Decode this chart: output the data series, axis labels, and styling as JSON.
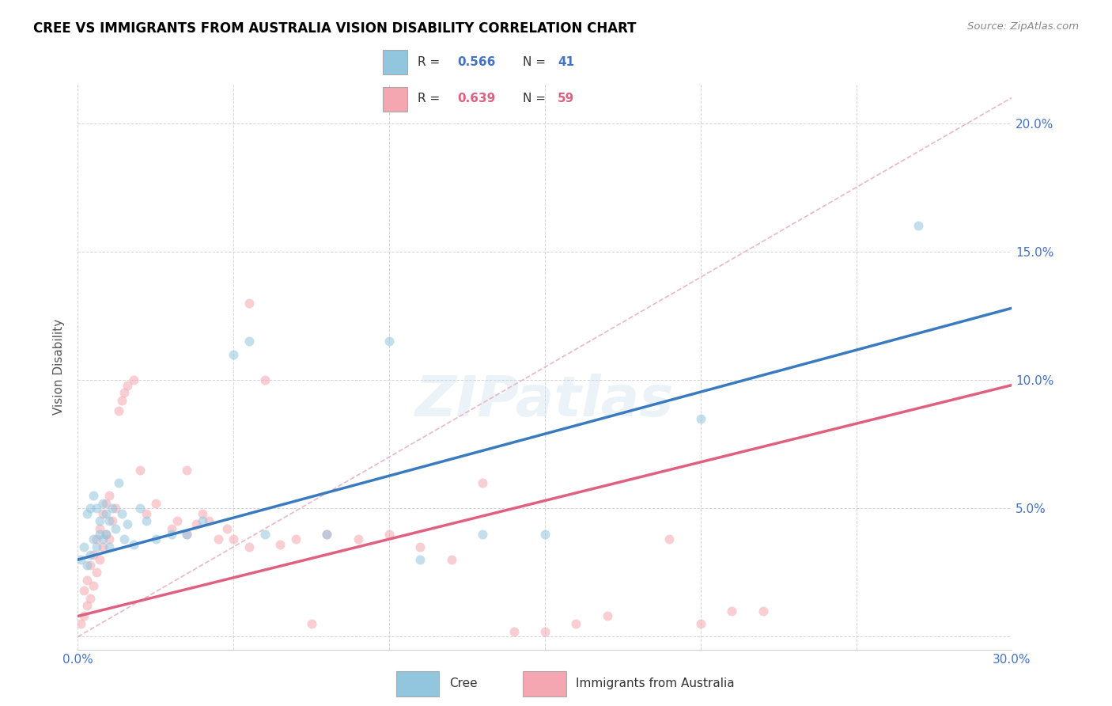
{
  "title": "CREE VS IMMIGRANTS FROM AUSTRALIA VISION DISABILITY CORRELATION CHART",
  "source": "Source: ZipAtlas.com",
  "ylabel": "Vision Disability",
  "xlim": [
    0.0,
    0.3
  ],
  "ylim": [
    -0.005,
    0.215
  ],
  "xticks": [
    0.0,
    0.05,
    0.1,
    0.15,
    0.2,
    0.25,
    0.3
  ],
  "yticks": [
    0.0,
    0.05,
    0.1,
    0.15,
    0.2
  ],
  "cree_color": "#92c5de",
  "immigrants_color": "#f4a7b0",
  "cree_line_color": "#3a7abf",
  "immigrants_line_color": "#e06080",
  "diagonal_color": "#e8b8c8",
  "cree_R": 0.566,
  "cree_N": 41,
  "immigrants_R": 0.639,
  "immigrants_N": 59,
  "legend_label_cree": "Cree",
  "legend_label_immigrants": "Immigrants from Australia",
  "watermark": "ZIPatlas",
  "label_color_blue": "#4472c4",
  "label_color_pink": "#e06080",
  "cree_x": [
    0.001,
    0.002,
    0.003,
    0.003,
    0.004,
    0.004,
    0.005,
    0.005,
    0.006,
    0.006,
    0.007,
    0.007,
    0.008,
    0.008,
    0.009,
    0.009,
    0.01,
    0.01,
    0.011,
    0.012,
    0.013,
    0.014,
    0.015,
    0.016,
    0.018,
    0.02,
    0.022,
    0.025,
    0.03,
    0.035,
    0.04,
    0.05,
    0.055,
    0.06,
    0.08,
    0.1,
    0.11,
    0.13,
    0.15,
    0.2,
    0.27
  ],
  "cree_y": [
    0.03,
    0.035,
    0.028,
    0.048,
    0.032,
    0.05,
    0.038,
    0.055,
    0.035,
    0.05,
    0.04,
    0.045,
    0.038,
    0.052,
    0.04,
    0.048,
    0.035,
    0.045,
    0.05,
    0.042,
    0.06,
    0.048,
    0.038,
    0.044,
    0.036,
    0.05,
    0.045,
    0.038,
    0.04,
    0.04,
    0.045,
    0.11,
    0.115,
    0.04,
    0.04,
    0.115,
    0.03,
    0.04,
    0.04,
    0.085,
    0.16
  ],
  "immigrants_x": [
    0.001,
    0.002,
    0.002,
    0.003,
    0.003,
    0.004,
    0.004,
    0.005,
    0.005,
    0.006,
    0.006,
    0.007,
    0.007,
    0.008,
    0.008,
    0.009,
    0.009,
    0.01,
    0.01,
    0.011,
    0.012,
    0.013,
    0.014,
    0.015,
    0.016,
    0.018,
    0.02,
    0.022,
    0.025,
    0.03,
    0.032,
    0.035,
    0.038,
    0.04,
    0.042,
    0.045,
    0.048,
    0.05,
    0.055,
    0.06,
    0.065,
    0.07,
    0.08,
    0.09,
    0.1,
    0.12,
    0.14,
    0.16,
    0.2,
    0.22,
    0.13,
    0.15,
    0.17,
    0.19,
    0.21,
    0.11,
    0.075,
    0.055,
    0.035
  ],
  "immigrants_y": [
    0.005,
    0.008,
    0.018,
    0.012,
    0.022,
    0.015,
    0.028,
    0.02,
    0.032,
    0.025,
    0.038,
    0.03,
    0.042,
    0.035,
    0.048,
    0.04,
    0.052,
    0.038,
    0.055,
    0.045,
    0.05,
    0.088,
    0.092,
    0.095,
    0.098,
    0.1,
    0.065,
    0.048,
    0.052,
    0.042,
    0.045,
    0.04,
    0.044,
    0.048,
    0.045,
    0.038,
    0.042,
    0.038,
    0.035,
    0.1,
    0.036,
    0.038,
    0.04,
    0.038,
    0.04,
    0.03,
    0.002,
    0.005,
    0.005,
    0.01,
    0.06,
    0.002,
    0.008,
    0.038,
    0.01,
    0.035,
    0.005,
    0.13,
    0.065
  ],
  "cree_line_x0": 0.0,
  "cree_line_y0": 0.03,
  "cree_line_x1": 0.3,
  "cree_line_y1": 0.128,
  "immigrants_line_x0": 0.0,
  "immigrants_line_y0": 0.008,
  "immigrants_line_x1": 0.3,
  "immigrants_line_y1": 0.098
}
